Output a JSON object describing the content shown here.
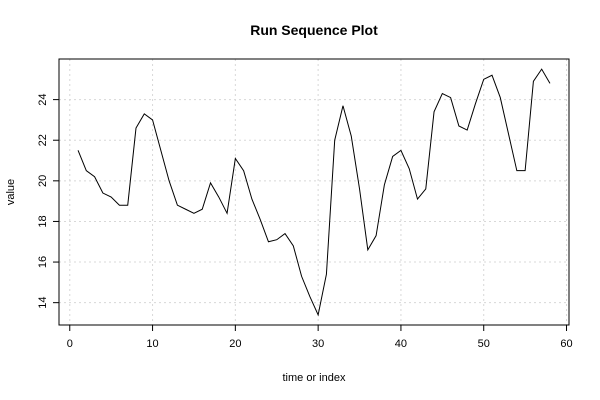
{
  "chart_data": {
    "type": "line",
    "title": "Run Sequence Plot",
    "xlabel": "time or index",
    "ylabel": "value",
    "xlim": [
      -1.3,
      60.3
    ],
    "ylim": [
      12.9,
      26.0
    ],
    "xticks": [
      0,
      10,
      20,
      30,
      40,
      50,
      60
    ],
    "yticks": [
      14,
      16,
      18,
      20,
      22,
      24
    ],
    "grid": true,
    "x": [
      1,
      2,
      3,
      4,
      5,
      6,
      7,
      8,
      9,
      10,
      11,
      12,
      13,
      14,
      15,
      16,
      17,
      18,
      19,
      20,
      21,
      22,
      23,
      24,
      25,
      26,
      27,
      28,
      29,
      30,
      31,
      32,
      33,
      34,
      35,
      36,
      37,
      38,
      39,
      40,
      41,
      42,
      43,
      44,
      45,
      46,
      47,
      48,
      49,
      50,
      51,
      52,
      53,
      54,
      55,
      56,
      57,
      58
    ],
    "values": [
      21.5,
      20.5,
      20.2,
      19.4,
      19.2,
      18.8,
      18.8,
      22.6,
      23.3,
      23.0,
      21.5,
      20.0,
      18.8,
      18.6,
      18.4,
      18.6,
      19.9,
      19.2,
      18.4,
      21.1,
      20.5,
      19.1,
      18.1,
      17.0,
      17.1,
      17.4,
      16.8,
      15.3,
      14.3,
      13.4,
      15.4,
      22.0,
      23.7,
      22.2,
      19.6,
      16.6,
      17.3,
      19.8,
      21.2,
      21.5,
      20.6,
      19.1,
      19.6,
      23.4,
      24.3,
      24.1,
      22.7,
      22.5,
      23.8,
      25.0,
      25.2,
      24.1,
      22.3,
      20.5,
      20.5,
      24.9,
      25.5,
      24.8
    ]
  }
}
